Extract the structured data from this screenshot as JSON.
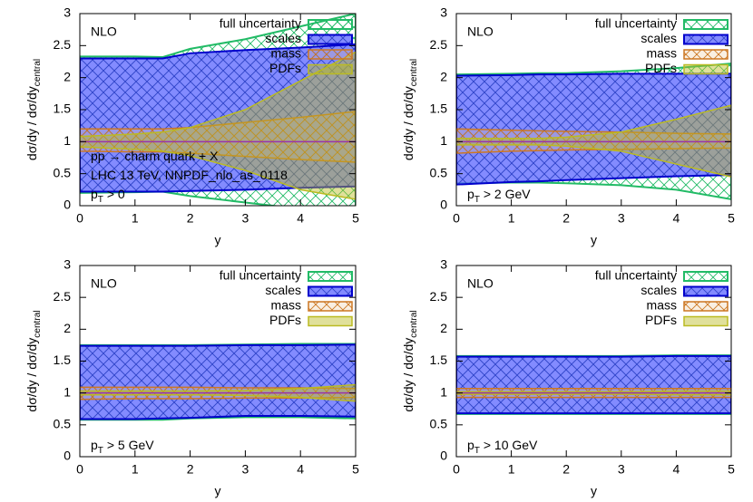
{
  "chart_data": [
    {
      "type": "band",
      "title": "NLO",
      "xlabel": "y",
      "ylabel": {
        "text": "dσ/dy / dσ/dy",
        "sub": "central"
      },
      "x": [
        0,
        1,
        1.5,
        2,
        3,
        4,
        5
      ],
      "xlim": [
        0,
        5
      ],
      "ylim": [
        0,
        3
      ],
      "xticks": [
        0,
        1,
        2,
        3,
        4,
        5
      ],
      "yticks": [
        0,
        0.5,
        1,
        1.5,
        2,
        2.5,
        3
      ],
      "grid": false,
      "legend": "upper right",
      "hline": 1,
      "hline_color": "#9933aa",
      "annotations": [
        {
          "text": "pp → charm quark + X"
        },
        {
          "text": "LHC 13 TeV, NNPDF_nlo_as_0118"
        },
        {
          "text": "p",
          "sub": "T",
          "rest": " > 0"
        }
      ],
      "series": [
        {
          "name": "full uncertainty",
          "color": "#22bb66",
          "lower": [
            0.2,
            0.21,
            0.22,
            0.15,
            0.05,
            -0.05,
            -0.15
          ],
          "upper": [
            2.33,
            2.33,
            2.32,
            2.45,
            2.6,
            2.8,
            3.0
          ]
        },
        {
          "name": "scales",
          "color": "#0000cc",
          "lower": [
            0.22,
            0.22,
            0.22,
            0.23,
            0.25,
            0.28,
            0.3
          ],
          "upper": [
            2.3,
            2.3,
            2.3,
            2.38,
            2.43,
            2.47,
            2.52
          ]
        },
        {
          "name": "mass",
          "color": "#cc7722",
          "lower": [
            0.85,
            0.84,
            0.84,
            0.82,
            0.77,
            0.72,
            0.68
          ],
          "upper": [
            1.2,
            1.2,
            1.2,
            1.22,
            1.3,
            1.38,
            1.47
          ]
        },
        {
          "name": "PDFs",
          "color": "#bbbb22",
          "lower": [
            0.92,
            0.88,
            0.85,
            0.78,
            0.55,
            0.25,
            0.1
          ],
          "upper": [
            1.08,
            1.12,
            1.15,
            1.22,
            1.5,
            1.95,
            2.4
          ]
        }
      ]
    },
    {
      "type": "band",
      "title": "NLO",
      "xlabel": "y",
      "ylabel": {
        "text": "dσ/dy / dσ/dy",
        "sub": "central"
      },
      "x": [
        0,
        1,
        1.5,
        2,
        3,
        4,
        5
      ],
      "xlim": [
        0,
        5
      ],
      "ylim": [
        0,
        3
      ],
      "xticks": [
        0,
        1,
        2,
        3,
        4,
        5
      ],
      "yticks": [
        0,
        0.5,
        1,
        1.5,
        2,
        2.5,
        3
      ],
      "grid": false,
      "legend": "upper right",
      "hline": 1,
      "hline_color": "#9933aa",
      "annotations": [
        {
          "text": "p",
          "sub": "T",
          "rest": " > 2 GeV"
        }
      ],
      "series": [
        {
          "name": "full uncertainty",
          "color": "#22bb66",
          "lower": [
            0.35,
            0.36,
            0.36,
            0.35,
            0.32,
            0.25,
            0.1
          ],
          "upper": [
            2.05,
            2.06,
            2.07,
            2.07,
            2.1,
            2.15,
            2.22
          ]
        },
        {
          "name": "scales",
          "color": "#0000cc",
          "lower": [
            0.33,
            0.37,
            0.38,
            0.4,
            0.43,
            0.46,
            0.48
          ],
          "upper": [
            2.03,
            2.04,
            2.05,
            2.05,
            2.06,
            2.06,
            2.06
          ]
        },
        {
          "name": "mass",
          "color": "#cc7722",
          "lower": [
            0.82,
            0.85,
            0.86,
            0.87,
            0.88,
            0.89,
            0.9
          ],
          "upper": [
            1.2,
            1.18,
            1.17,
            1.16,
            1.15,
            1.13,
            1.12
          ]
        },
        {
          "name": "PDFs",
          "color": "#bbbb22",
          "lower": [
            0.95,
            0.95,
            0.95,
            0.93,
            0.85,
            0.65,
            0.45
          ],
          "upper": [
            1.05,
            1.05,
            1.05,
            1.07,
            1.15,
            1.35,
            1.57
          ]
        }
      ]
    },
    {
      "type": "band",
      "title": "NLO",
      "xlabel": "y",
      "ylabel": {
        "text": "dσ/dy / dσ/dy",
        "sub": "central"
      },
      "x": [
        0,
        1,
        1.5,
        2,
        3,
        4,
        5
      ],
      "xlim": [
        0,
        5
      ],
      "ylim": [
        0,
        3
      ],
      "xticks": [
        0,
        1,
        2,
        3,
        4,
        5
      ],
      "yticks": [
        0,
        0.5,
        1,
        1.5,
        2,
        2.5,
        3
      ],
      "grid": false,
      "legend": "upper right",
      "hline": 1,
      "hline_color": "#9933aa",
      "annotations": [
        {
          "text": "p",
          "sub": "T",
          "rest": " > 5 GeV"
        }
      ],
      "series": [
        {
          "name": "full uncertainty",
          "color": "#22bb66",
          "lower": [
            0.58,
            0.58,
            0.58,
            0.6,
            0.62,
            0.62,
            0.6
          ],
          "upper": [
            1.75,
            1.75,
            1.75,
            1.75,
            1.76,
            1.77,
            1.77
          ]
        },
        {
          "name": "scales",
          "color": "#0000cc",
          "lower": [
            0.59,
            0.59,
            0.6,
            0.61,
            0.64,
            0.64,
            0.63
          ],
          "upper": [
            1.74,
            1.74,
            1.74,
            1.74,
            1.75,
            1.75,
            1.76
          ]
        },
        {
          "name": "mass",
          "color": "#cc7722",
          "lower": [
            0.9,
            0.91,
            0.91,
            0.91,
            0.92,
            0.92,
            0.93
          ],
          "upper": [
            1.09,
            1.09,
            1.09,
            1.09,
            1.08,
            1.08,
            1.07
          ]
        },
        {
          "name": "PDFs",
          "color": "#bbbb22",
          "lower": [
            0.97,
            0.97,
            0.97,
            0.97,
            0.96,
            0.93,
            0.87
          ],
          "upper": [
            1.03,
            1.03,
            1.03,
            1.03,
            1.04,
            1.07,
            1.13
          ]
        }
      ]
    },
    {
      "type": "band",
      "title": "NLO",
      "xlabel": "y",
      "ylabel": {
        "text": "dσ/dy / dσ/dy",
        "sub": "central"
      },
      "x": [
        0,
        1,
        1.5,
        2,
        3,
        4,
        5
      ],
      "xlim": [
        0,
        5
      ],
      "ylim": [
        0,
        3
      ],
      "xticks": [
        0,
        1,
        2,
        3,
        4,
        5
      ],
      "yticks": [
        0,
        0.5,
        1,
        1.5,
        2,
        2.5,
        3
      ],
      "grid": false,
      "legend": "upper right",
      "hline": 1,
      "hline_color": "#9933aa",
      "annotations": [
        {
          "text": "p",
          "sub": "T",
          "rest": " > 10 GeV"
        }
      ],
      "series": [
        {
          "name": "full uncertainty",
          "color": "#22bb66",
          "lower": [
            0.67,
            0.67,
            0.67,
            0.67,
            0.67,
            0.67,
            0.67
          ],
          "upper": [
            1.58,
            1.58,
            1.58,
            1.58,
            1.58,
            1.59,
            1.59
          ]
        },
        {
          "name": "scales",
          "color": "#0000cc",
          "lower": [
            0.68,
            0.68,
            0.68,
            0.68,
            0.68,
            0.68,
            0.68
          ],
          "upper": [
            1.57,
            1.57,
            1.57,
            1.57,
            1.57,
            1.58,
            1.58
          ]
        },
        {
          "name": "mass",
          "color": "#cc7722",
          "lower": [
            0.93,
            0.93,
            0.93,
            0.93,
            0.93,
            0.93,
            0.93
          ],
          "upper": [
            1.07,
            1.07,
            1.07,
            1.07,
            1.07,
            1.07,
            1.07
          ]
        },
        {
          "name": "PDFs",
          "color": "#bbbb22",
          "lower": [
            0.98,
            0.98,
            0.98,
            0.98,
            0.98,
            0.97,
            0.97
          ],
          "upper": [
            1.02,
            1.02,
            1.02,
            1.02,
            1.02,
            1.03,
            1.03
          ]
        }
      ]
    }
  ]
}
